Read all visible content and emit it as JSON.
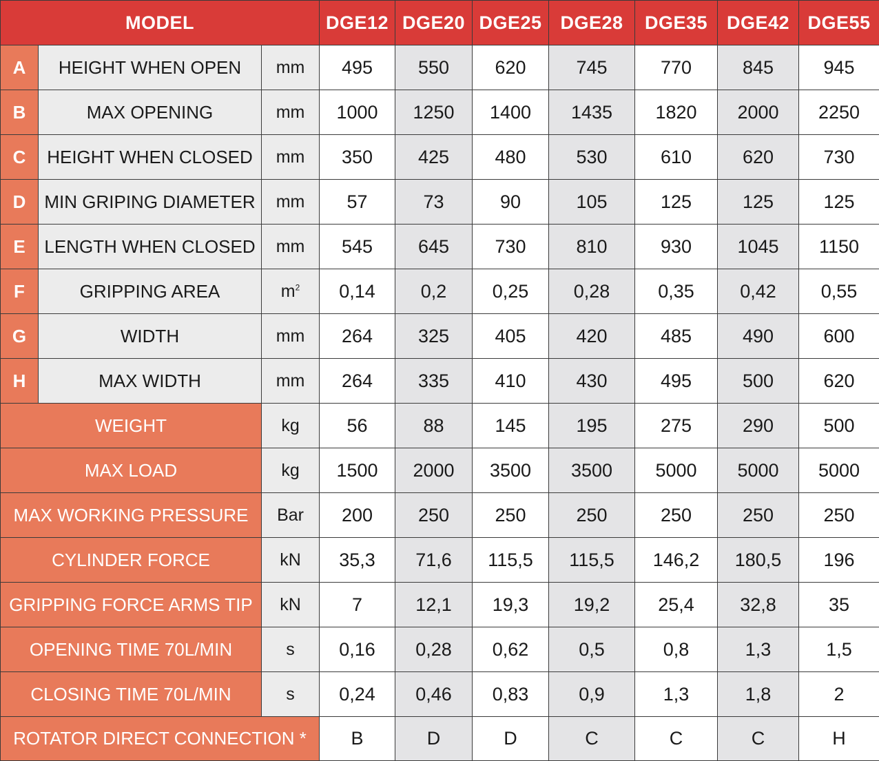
{
  "header": {
    "model_label": "MODEL",
    "models": [
      "DGE12",
      "DGE20",
      "DGE25",
      "DGE28",
      "DGE35",
      "DGE42",
      "DGE55"
    ]
  },
  "dimensions": [
    {
      "letter": "A",
      "label": "HEIGHT WHEN OPEN",
      "unit": "mm",
      "values": [
        "495",
        "550",
        "620",
        "745",
        "770",
        "845",
        "945"
      ]
    },
    {
      "letter": "B",
      "label": "MAX OPENING",
      "unit": "mm",
      "values": [
        "1000",
        "1250",
        "1400",
        "1435",
        "1820",
        "2000",
        "2250"
      ]
    },
    {
      "letter": "C",
      "label": "HEIGHT WHEN CLOSED",
      "unit": "mm",
      "values": [
        "350",
        "425",
        "480",
        "530",
        "610",
        "620",
        "730"
      ]
    },
    {
      "letter": "D",
      "label": "MIN GRIPING DIAMETER",
      "unit": "mm",
      "values": [
        "57",
        "73",
        "90",
        "105",
        "125",
        "125",
        "125"
      ]
    },
    {
      "letter": "E",
      "label": "LENGTH WHEN CLOSED",
      "unit": "mm",
      "values": [
        "545",
        "645",
        "730",
        "810",
        "930",
        "1045",
        "1150"
      ]
    },
    {
      "letter": "F",
      "label": "GRIPPING AREA",
      "unit": "m",
      "unit_sup": "2",
      "values": [
        "0,14",
        "0,2",
        "0,25",
        "0,28",
        "0,35",
        "0,42",
        "0,55"
      ]
    },
    {
      "letter": "G",
      "label": "WIDTH",
      "unit": "mm",
      "values": [
        "264",
        "325",
        "405",
        "420",
        "485",
        "490",
        "600"
      ]
    },
    {
      "letter": "H",
      "label": "MAX WIDTH",
      "unit": "mm",
      "values": [
        "264",
        "335",
        "410",
        "430",
        "495",
        "500",
        "620"
      ]
    }
  ],
  "properties": [
    {
      "label": "WEIGHT",
      "unit": "kg",
      "values": [
        "56",
        "88",
        "145",
        "195",
        "275",
        "290",
        "500"
      ]
    },
    {
      "label": "MAX LOAD",
      "unit": "kg",
      "values": [
        "1500",
        "2000",
        "3500",
        "3500",
        "5000",
        "5000",
        "5000"
      ]
    },
    {
      "label": "MAX WORKING PRESSURE",
      "unit": "Bar",
      "values": [
        "200",
        "250",
        "250",
        "250",
        "250",
        "250",
        "250"
      ]
    },
    {
      "label": "CYLINDER FORCE",
      "unit": "kN",
      "values": [
        "35,3",
        "71,6",
        "115,5",
        "115,5",
        "146,2",
        "180,5",
        "196"
      ]
    },
    {
      "label": "GRIPPING FORCE ARMS TIP",
      "unit": "kN",
      "values": [
        "7",
        "12,1",
        "19,3",
        "19,2",
        "25,4",
        "32,8",
        "35"
      ]
    },
    {
      "label": "OPENING TIME 70L/MIN",
      "unit": "s",
      "values": [
        "0,16",
        "0,28",
        "0,62",
        "0,5",
        "0,8",
        "1,3",
        "1,5"
      ]
    },
    {
      "label": "CLOSING TIME 70L/MIN",
      "unit": "s",
      "values": [
        "0,24",
        "0,46",
        "0,83",
        "0,9",
        "1,3",
        "1,8",
        "2"
      ]
    }
  ],
  "connection": {
    "label": "ROTATOR DIRECT CONNECTION *",
    "values": [
      "B",
      "D",
      "D",
      "C",
      "C",
      "C",
      "H"
    ]
  },
  "colors": {
    "header_red": "#d93b38",
    "label_salmon": "#e87a5a",
    "row_gray": "#ececec",
    "alt_col_gray": "#e4e4e6"
  }
}
